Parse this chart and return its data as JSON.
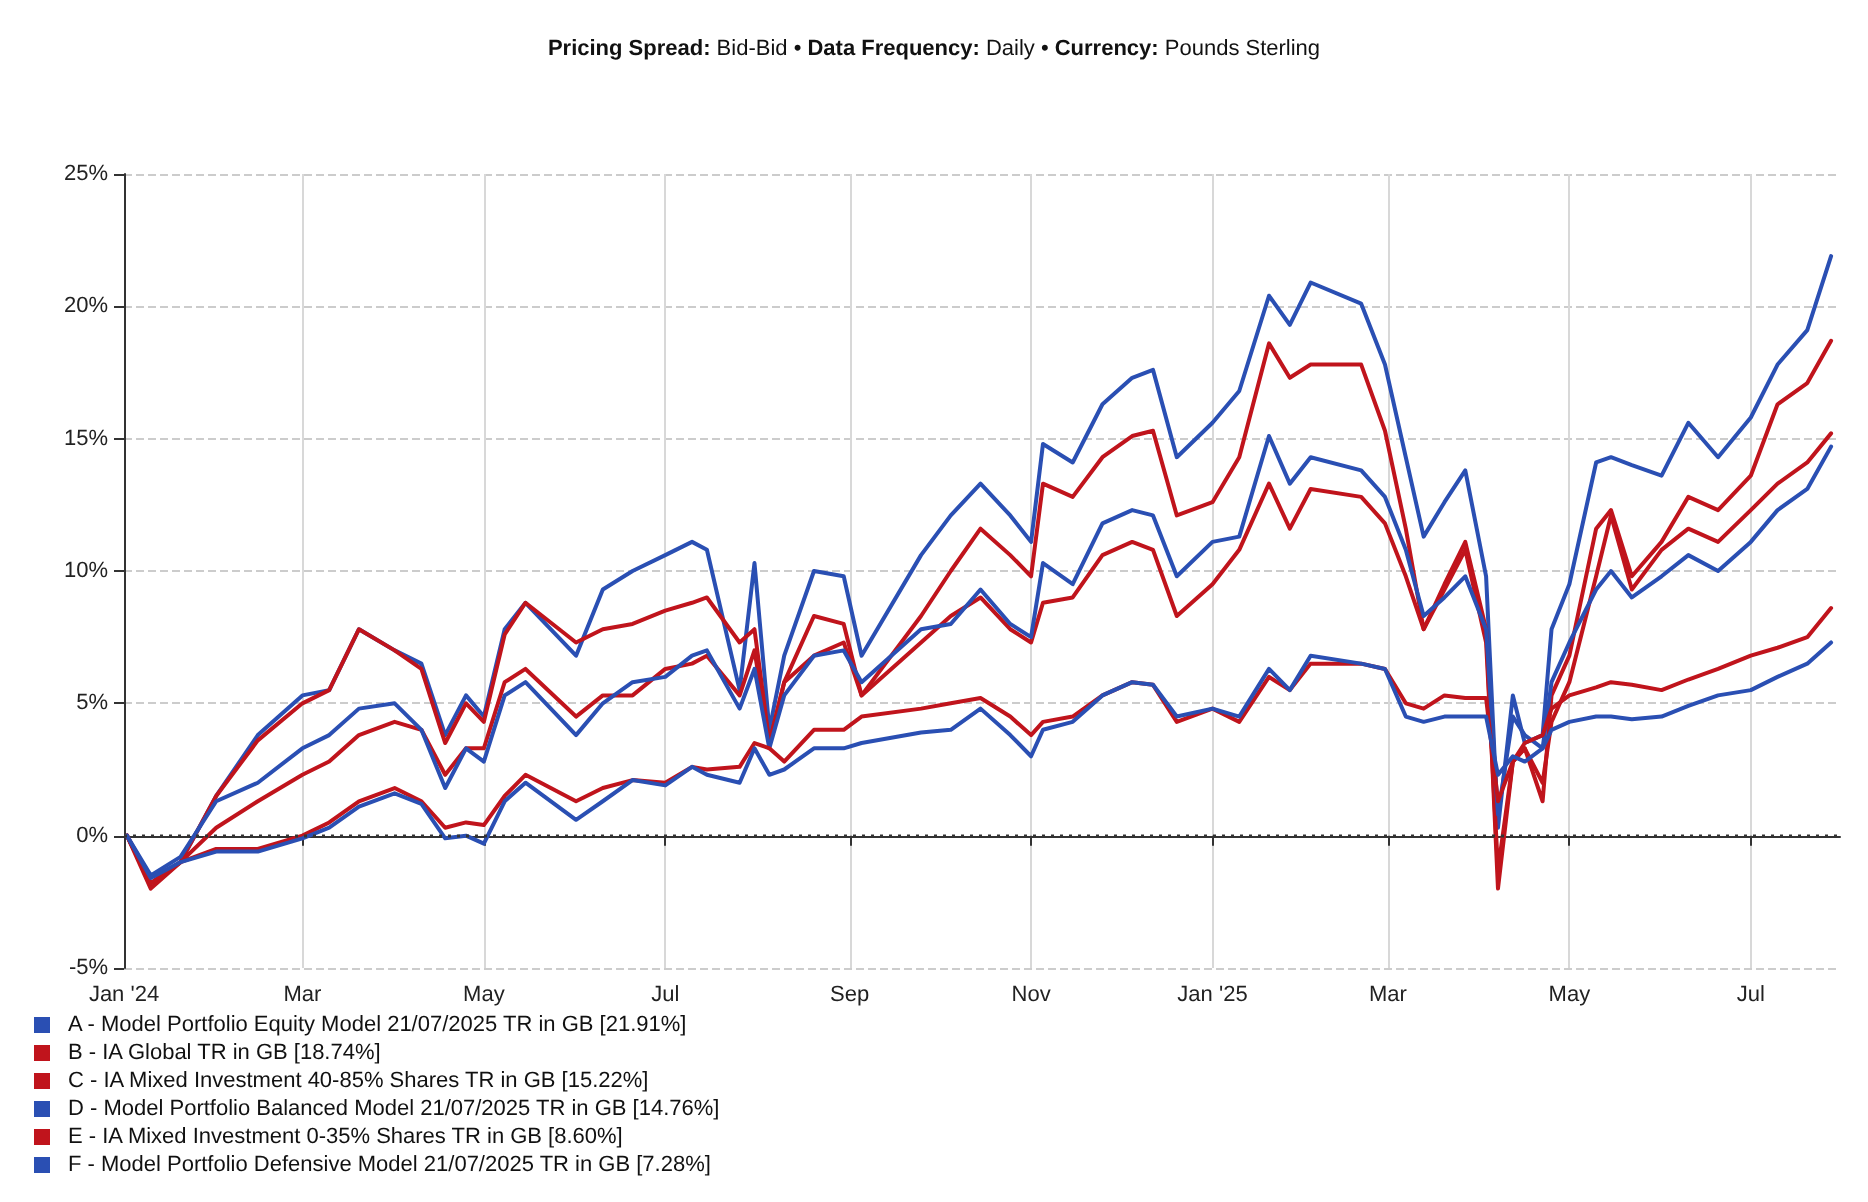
{
  "chart_data": {
    "type": "line",
    "title": "Pricing Spread: Bid-Bid • Data Frequency: Daily • Currency: Pounds Sterling",
    "x": [
      "2024-01-02",
      "2024-01-10",
      "2024-01-20",
      "2024-02-01",
      "2024-02-15",
      "2024-03-01",
      "2024-03-10",
      "2024-03-20",
      "2024-04-01",
      "2024-04-10",
      "2024-04-18",
      "2024-04-25",
      "2024-05-01",
      "2024-05-08",
      "2024-05-15",
      "2024-06-01",
      "2024-06-10",
      "2024-06-20",
      "2024-07-01",
      "2024-07-10",
      "2024-07-15",
      "2024-07-26",
      "2024-07-31",
      "2024-08-05",
      "2024-08-10",
      "2024-08-20",
      "2024-08-30",
      "2024-09-05",
      "2024-09-25",
      "2024-10-05",
      "2024-10-15",
      "2024-10-25",
      "2024-11-01",
      "2024-11-05",
      "2024-11-15",
      "2024-11-25",
      "2024-12-05",
      "2024-12-12",
      "2024-12-20",
      "2025-01-01",
      "2025-01-10",
      "2025-01-20",
      "2025-01-27",
      "2025-02-03",
      "2025-02-20",
      "2025-02-28",
      "2025-03-07",
      "2025-03-13",
      "2025-03-20",
      "2025-03-27",
      "2025-04-03",
      "2025-04-07",
      "2025-04-12",
      "2025-04-16",
      "2025-04-22",
      "2025-04-25",
      "2025-05-01",
      "2025-05-10",
      "2025-05-15",
      "2025-05-22",
      "2025-06-01",
      "2025-06-10",
      "2025-06-20",
      "2025-07-01",
      "2025-07-10",
      "2025-07-20",
      "2025-07-28"
    ],
    "series": [
      {
        "name": "A - Model Portfolio Equity Model 21/07/2025 TR in GB [21.91%]",
        "color": "#2a4fb3",
        "values": [
          0,
          -1.8,
          -1.0,
          1.5,
          3.8,
          5.3,
          5.5,
          7.8,
          7.0,
          6.5,
          3.8,
          5.3,
          4.5,
          7.8,
          8.8,
          6.8,
          9.3,
          10.0,
          10.6,
          11.1,
          10.8,
          5.5,
          10.3,
          4.0,
          6.8,
          10.0,
          9.8,
          6.8,
          10.6,
          12.1,
          13.3,
          12.1,
          11.1,
          14.8,
          14.1,
          16.3,
          17.3,
          17.6,
          14.3,
          15.6,
          16.8,
          20.4,
          19.3,
          20.9,
          20.1,
          17.8,
          14.3,
          11.3,
          12.6,
          13.8,
          9.8,
          0.3,
          5.3,
          3.5,
          3.8,
          7.8,
          9.5,
          14.1,
          14.3,
          14.0,
          13.6,
          15.6,
          14.3,
          15.8,
          17.8,
          19.1,
          21.9
        ]
      },
      {
        "name": "B - IA Global TR in GB [18.74%]",
        "color": "#c0141c",
        "values": [
          0,
          -2.0,
          -1.0,
          1.5,
          3.6,
          5.0,
          5.5,
          7.8,
          7.0,
          6.3,
          3.5,
          5.0,
          4.3,
          7.6,
          8.8,
          7.3,
          7.8,
          8.0,
          8.5,
          8.8,
          9.0,
          7.3,
          7.8,
          3.5,
          5.8,
          8.3,
          8.0,
          5.3,
          8.3,
          10.0,
          11.6,
          10.6,
          9.8,
          13.3,
          12.8,
          14.3,
          15.1,
          15.3,
          12.1,
          12.6,
          14.3,
          18.6,
          17.3,
          17.8,
          17.8,
          15.3,
          11.6,
          7.8,
          9.5,
          11.1,
          7.8,
          -2.0,
          2.8,
          3.3,
          1.3,
          5.3,
          6.8,
          11.6,
          12.3,
          9.8,
          11.1,
          12.8,
          12.3,
          13.6,
          16.3,
          17.1,
          18.7
        ]
      },
      {
        "name": "C - IA Mixed Investment 40-85% Shares TR in GB [15.22%]",
        "color": "#c0141c",
        "values": [
          0,
          -1.8,
          -1.0,
          0.3,
          1.3,
          2.3,
          2.8,
          3.8,
          4.3,
          4.0,
          2.3,
          3.3,
          3.3,
          5.8,
          6.3,
          4.5,
          5.3,
          5.3,
          6.3,
          6.5,
          6.8,
          5.3,
          7.0,
          3.5,
          5.8,
          6.8,
          7.3,
          5.3,
          7.3,
          8.3,
          9.0,
          7.8,
          7.3,
          8.8,
          9.0,
          10.6,
          11.1,
          10.8,
          8.3,
          9.5,
          10.8,
          13.3,
          11.6,
          13.1,
          12.8,
          11.8,
          9.8,
          7.8,
          9.3,
          10.8,
          7.3,
          -1.3,
          2.8,
          3.3,
          2.0,
          4.3,
          5.8,
          9.8,
          12.1,
          9.3,
          10.8,
          11.6,
          11.1,
          12.3,
          13.3,
          14.1,
          15.2
        ]
      },
      {
        "name": "D - Model Portfolio Balanced Model 21/07/2025 TR in GB [14.76%]",
        "color": "#2a4fb3",
        "values": [
          0,
          -1.5,
          -0.8,
          1.3,
          2.0,
          3.3,
          3.8,
          4.8,
          5.0,
          4.0,
          1.8,
          3.3,
          2.8,
          5.3,
          5.8,
          3.8,
          5.0,
          5.8,
          6.0,
          6.8,
          7.0,
          4.8,
          6.3,
          3.3,
          5.3,
          6.8,
          7.0,
          5.8,
          7.8,
          8.0,
          9.3,
          8.0,
          7.5,
          10.3,
          9.5,
          11.8,
          12.3,
          12.1,
          9.8,
          11.1,
          11.3,
          15.1,
          13.3,
          14.3,
          13.8,
          12.8,
          10.8,
          8.3,
          9.0,
          9.8,
          7.8,
          0.8,
          4.5,
          3.8,
          3.3,
          5.8,
          7.3,
          9.3,
          10.0,
          9.0,
          9.8,
          10.6,
          10.0,
          11.1,
          12.3,
          13.1,
          14.7
        ]
      },
      {
        "name": "E - IA Mixed Investment 0-35% Shares TR in GB [8.60%]",
        "color": "#c0141c",
        "values": [
          0,
          -1.8,
          -1.0,
          -0.5,
          -0.5,
          0,
          0.5,
          1.3,
          1.8,
          1.3,
          0.3,
          0.5,
          0.4,
          1.5,
          2.3,
          1.3,
          1.8,
          2.1,
          2.0,
          2.6,
          2.5,
          2.6,
          3.5,
          3.3,
          2.8,
          4.0,
          4.0,
          4.5,
          4.8,
          5.0,
          5.2,
          4.5,
          3.8,
          4.3,
          4.5,
          5.3,
          5.8,
          5.7,
          4.3,
          4.8,
          4.3,
          6.0,
          5.5,
          6.5,
          6.5,
          6.3,
          5.0,
          4.8,
          5.3,
          5.2,
          5.2,
          1.3,
          2.8,
          3.5,
          3.8,
          4.8,
          5.3,
          5.6,
          5.8,
          5.7,
          5.5,
          5.9,
          6.3,
          6.8,
          7.1,
          7.5,
          8.6
        ]
      },
      {
        "name": "F - Model Portfolio Defensive Model 21/07/2025 TR in GB [7.28%]",
        "color": "#2a4fb3",
        "values": [
          0,
          -1.6,
          -1.0,
          -0.6,
          -0.6,
          -0.1,
          0.3,
          1.1,
          1.6,
          1.2,
          -0.1,
          0,
          -0.3,
          1.3,
          2.0,
          0.6,
          1.3,
          2.1,
          1.9,
          2.6,
          2.3,
          2.0,
          3.3,
          2.3,
          2.5,
          3.3,
          3.3,
          3.5,
          3.9,
          4.0,
          4.8,
          3.8,
          3.0,
          4.0,
          4.3,
          5.3,
          5.8,
          5.7,
          4.5,
          4.8,
          4.5,
          6.3,
          5.5,
          6.8,
          6.5,
          6.3,
          4.5,
          4.3,
          4.5,
          4.5,
          4.5,
          2.3,
          3.0,
          2.8,
          3.3,
          4.0,
          4.3,
          4.5,
          4.5,
          4.4,
          4.5,
          4.9,
          5.3,
          5.5,
          6.0,
          6.5,
          7.3
        ]
      }
    ],
    "xlim": [
      "2024-01-01",
      "2025-07-31"
    ],
    "xticks": [
      {
        "value": "2024-01-01",
        "label": "Jan '24"
      },
      {
        "value": "2024-03-01",
        "label": "Mar"
      },
      {
        "value": "2024-05-01",
        "label": "May"
      },
      {
        "value": "2024-07-01",
        "label": "Jul"
      },
      {
        "value": "2024-09-01",
        "label": "Sep"
      },
      {
        "value": "2024-11-01",
        "label": "Nov"
      },
      {
        "value": "2025-01-01",
        "label": "Jan '25"
      },
      {
        "value": "2025-03-01",
        "label": "Mar"
      },
      {
        "value": "2025-05-01",
        "label": "May"
      },
      {
        "value": "2025-07-01",
        "label": "Jul"
      }
    ],
    "ylim": [
      -5,
      25
    ],
    "yticks": [
      {
        "value": -5,
        "label": "-5%"
      },
      {
        "value": 0,
        "label": "0%"
      },
      {
        "value": 5,
        "label": "5%"
      },
      {
        "value": 10,
        "label": "10%"
      },
      {
        "value": 15,
        "label": "15%"
      },
      {
        "value": 20,
        "label": "20%"
      },
      {
        "value": 25,
        "label": "25%"
      }
    ],
    "ref_lines": [
      {
        "axis": "y",
        "value": 0,
        "color": "#333333",
        "line_style": "dotted"
      }
    ],
    "grid": true,
    "legend": "bottom left",
    "marker": "none",
    "line_style": "solid"
  }
}
